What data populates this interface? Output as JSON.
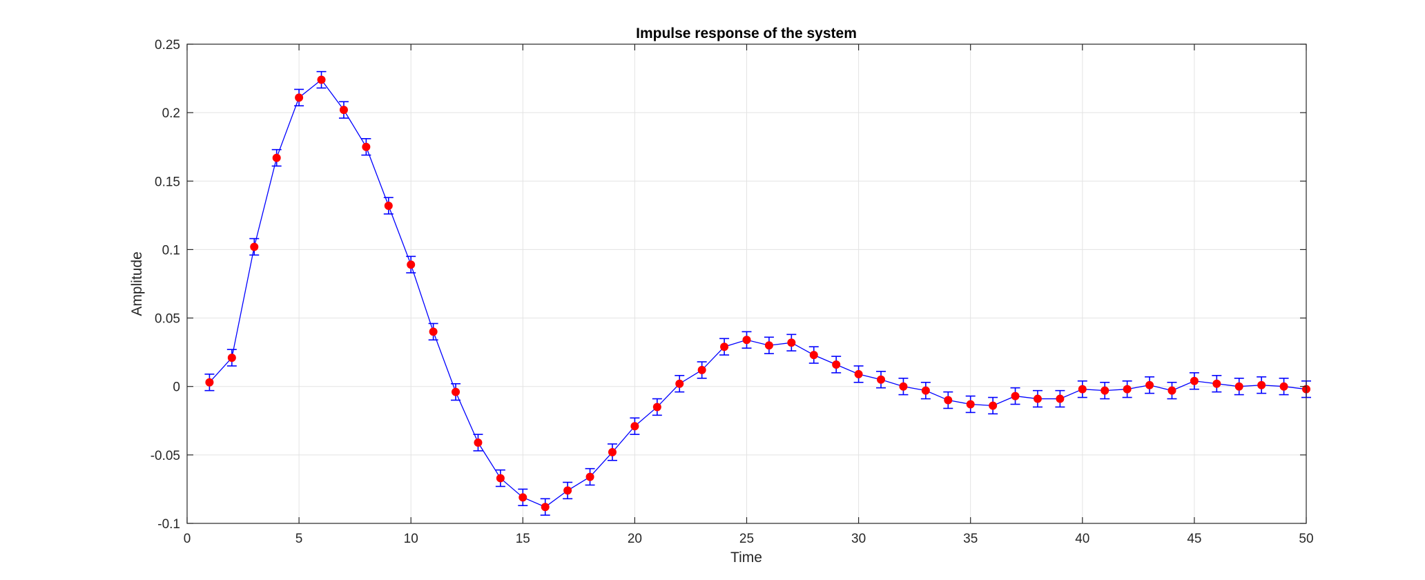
{
  "chart_data": {
    "type": "line",
    "title": "Impulse response of the system",
    "xlabel": "Time",
    "ylabel": "Amplitude",
    "xlim": [
      0,
      50
    ],
    "ylim": [
      -0.1,
      0.25
    ],
    "xticks": [
      0,
      5,
      10,
      15,
      20,
      25,
      30,
      35,
      40,
      45,
      50
    ],
    "xtick_labels": [
      "0",
      "5",
      "10",
      "15",
      "20",
      "25",
      "30",
      "35",
      "40",
      "45",
      "50"
    ],
    "yticks": [
      -0.1,
      -0.05,
      0,
      0.05,
      0.1,
      0.15,
      0.2,
      0.25
    ],
    "ytick_labels": [
      "-0.1",
      "-0.05",
      "0",
      "0.05",
      "0.1",
      "0.15",
      "0.2",
      "0.25"
    ],
    "grid": true,
    "legend": "none",
    "error_bar_halfwidth": 0.006,
    "series": [
      {
        "line_color": "#0000ff",
        "marker_color": "#ff0000",
        "errorbar_color": "#0000ff",
        "x": [
          1,
          2,
          3,
          4,
          5,
          6,
          7,
          8,
          9,
          10,
          11,
          12,
          13,
          14,
          15,
          16,
          17,
          18,
          19,
          20,
          21,
          22,
          23,
          24,
          25,
          26,
          27,
          28,
          29,
          30,
          31,
          32,
          33,
          34,
          35,
          36,
          37,
          38,
          39,
          40,
          41,
          42,
          43,
          44,
          45,
          46,
          47,
          48,
          49,
          50
        ],
        "y": [
          0.003,
          0.021,
          0.102,
          0.167,
          0.211,
          0.224,
          0.202,
          0.175,
          0.132,
          0.089,
          0.04,
          -0.004,
          -0.041,
          -0.067,
          -0.081,
          -0.088,
          -0.076,
          -0.066,
          -0.048,
          -0.029,
          -0.015,
          0.002,
          0.012,
          0.029,
          0.034,
          0.03,
          0.032,
          0.023,
          0.016,
          0.009,
          0.005,
          0.0,
          -0.003,
          -0.01,
          -0.013,
          -0.014,
          -0.007,
          -0.009,
          -0.009,
          -0.002,
          -0.003,
          -0.002,
          0.001,
          -0.003,
          0.004,
          0.002,
          0.0,
          0.001,
          0.0,
          -0.002
        ]
      }
    ]
  }
}
